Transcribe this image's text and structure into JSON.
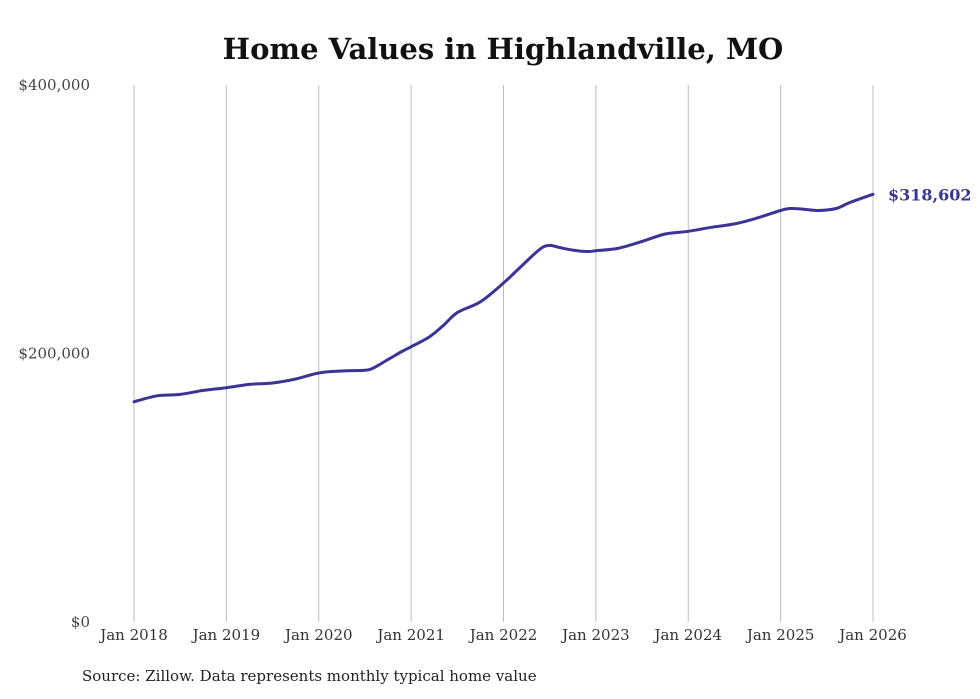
{
  "chart_data": {
    "type": "line",
    "title": "Home Values in Highlandville, MO",
    "xlabel": "",
    "ylabel": "",
    "source": "Source: Zillow. Data represents monthly typical home value",
    "ylim": [
      0,
      400000
    ],
    "y_ticks": [
      {
        "value": 0,
        "label": "$0"
      },
      {
        "value": 200000,
        "label": "$200,000"
      },
      {
        "value": 400000,
        "label": "$400,000"
      }
    ],
    "x_ticks": [
      {
        "value": 2018,
        "label": "Jan 2018"
      },
      {
        "value": 2019,
        "label": "Jan 2019"
      },
      {
        "value": 2020,
        "label": "Jan 2020"
      },
      {
        "value": 2021,
        "label": "Jan 2021"
      },
      {
        "value": 2022,
        "label": "Jan 2022"
      },
      {
        "value": 2023,
        "label": "Jan 2023"
      },
      {
        "value": 2024,
        "label": "Jan 2024"
      },
      {
        "value": 2025,
        "label": "Jan 2025"
      },
      {
        "value": 2026,
        "label": "Jan 2026"
      }
    ],
    "xlim": [
      2018,
      2026
    ],
    "grid": "vertical",
    "series": [
      {
        "name": "Highlandville, MO",
        "color": "#3b3494",
        "x": [
          2018.0,
          2018.25,
          2018.5,
          2018.75,
          2019.0,
          2019.25,
          2019.5,
          2019.75,
          2020.0,
          2020.25,
          2020.5,
          2020.6,
          2020.75,
          2020.9,
          2021.0,
          2021.2,
          2021.35,
          2021.5,
          2021.75,
          2022.0,
          2022.2,
          2022.4,
          2022.5,
          2022.6,
          2022.75,
          2022.9,
          2023.0,
          2023.25,
          2023.5,
          2023.75,
          2024.0,
          2024.25,
          2024.5,
          2024.75,
          2025.0,
          2025.1,
          2025.25,
          2025.4,
          2025.6,
          2025.75,
          2026.0
        ],
        "values": [
          164000,
          168500,
          169500,
          172500,
          174500,
          177000,
          178000,
          181000,
          185500,
          187000,
          187500,
          189500,
          195500,
          201500,
          205000,
          212500,
          221000,
          230500,
          238500,
          252500,
          265500,
          278000,
          280500,
          279000,
          277000,
          276000,
          276500,
          278500,
          283500,
          289000,
          291000,
          294000,
          296500,
          301000,
          306500,
          308000,
          307500,
          306500,
          308000,
          312500,
          318602
        ]
      }
    ],
    "end_label": "$318,602"
  }
}
